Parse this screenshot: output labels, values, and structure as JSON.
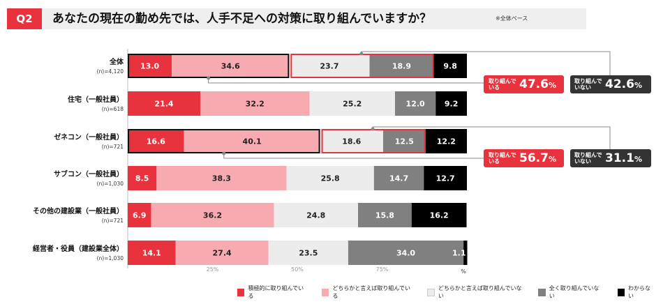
{
  "header": {
    "badge": "Q2",
    "title": "あなたの現在の勤め先では、人手不足への対策に取り組んでいますか？",
    "note": "※全体ベース"
  },
  "chart_data": {
    "type": "bar",
    "orientation": "horizontal",
    "stacked": true,
    "percent_axis": true,
    "xlim": [
      0,
      100
    ],
    "x_ticks": [
      "25%",
      "50%",
      "75%"
    ],
    "x_unit": "%",
    "categories": [
      {
        "name": "全体",
        "n": "(n)=4,120"
      },
      {
        "name": "住宅（一般社員）",
        "n": "(n)=618"
      },
      {
        "name": "ゼネコン（一般社員）",
        "n": "(n)=721"
      },
      {
        "name": "サブコン（一般社員）",
        "n": "(n)=1,030"
      },
      {
        "name": "その他の建設業（一般社員）",
        "n": "(n)=721"
      },
      {
        "name": "経営者・役員（建設業全体）",
        "n": "(n)=1,030"
      }
    ],
    "series": [
      {
        "name": "積極的に取り組んでいる",
        "color": "#e8333f",
        "text_color": "#ffffff",
        "values": [
          13.0,
          21.4,
          16.6,
          8.5,
          6.9,
          14.1
        ]
      },
      {
        "name": "どちらかと言えば取り組んでいる",
        "color": "#f7aab0",
        "text_color": "#222222",
        "values": [
          34.6,
          32.2,
          40.1,
          38.3,
          36.2,
          27.4
        ]
      },
      {
        "name": "どちらかと言えば取り組んでいない",
        "color": "#ececec",
        "text_color": "#222222",
        "values": [
          23.7,
          25.2,
          18.6,
          25.8,
          24.8,
          23.5
        ]
      },
      {
        "name": "全く取り組んでいない",
        "color": "#808080",
        "text_color": "#ffffff",
        "values": [
          18.9,
          12.0,
          12.5,
          14.7,
          15.8,
          34.0
        ]
      },
      {
        "name": "わからない",
        "color": "#000000",
        "text_color": "#ffffff",
        "values": [
          9.8,
          9.2,
          12.2,
          12.7,
          16.2,
          1.1
        ]
      }
    ],
    "legend_position": "bottom",
    "grid": false,
    "highlighted_rows": [
      0,
      2
    ]
  },
  "callouts": [
    {
      "row": 0,
      "doing_label": "取り組んでいる",
      "doing_value": "47.6",
      "not_label": "取り組んでいない",
      "not_value": "42.6",
      "unit": "%"
    },
    {
      "row": 2,
      "doing_label": "取り組んでいる",
      "doing_value": "56.7",
      "not_label": "取り組んでいない",
      "not_value": "31.1",
      "unit": "%"
    }
  ]
}
